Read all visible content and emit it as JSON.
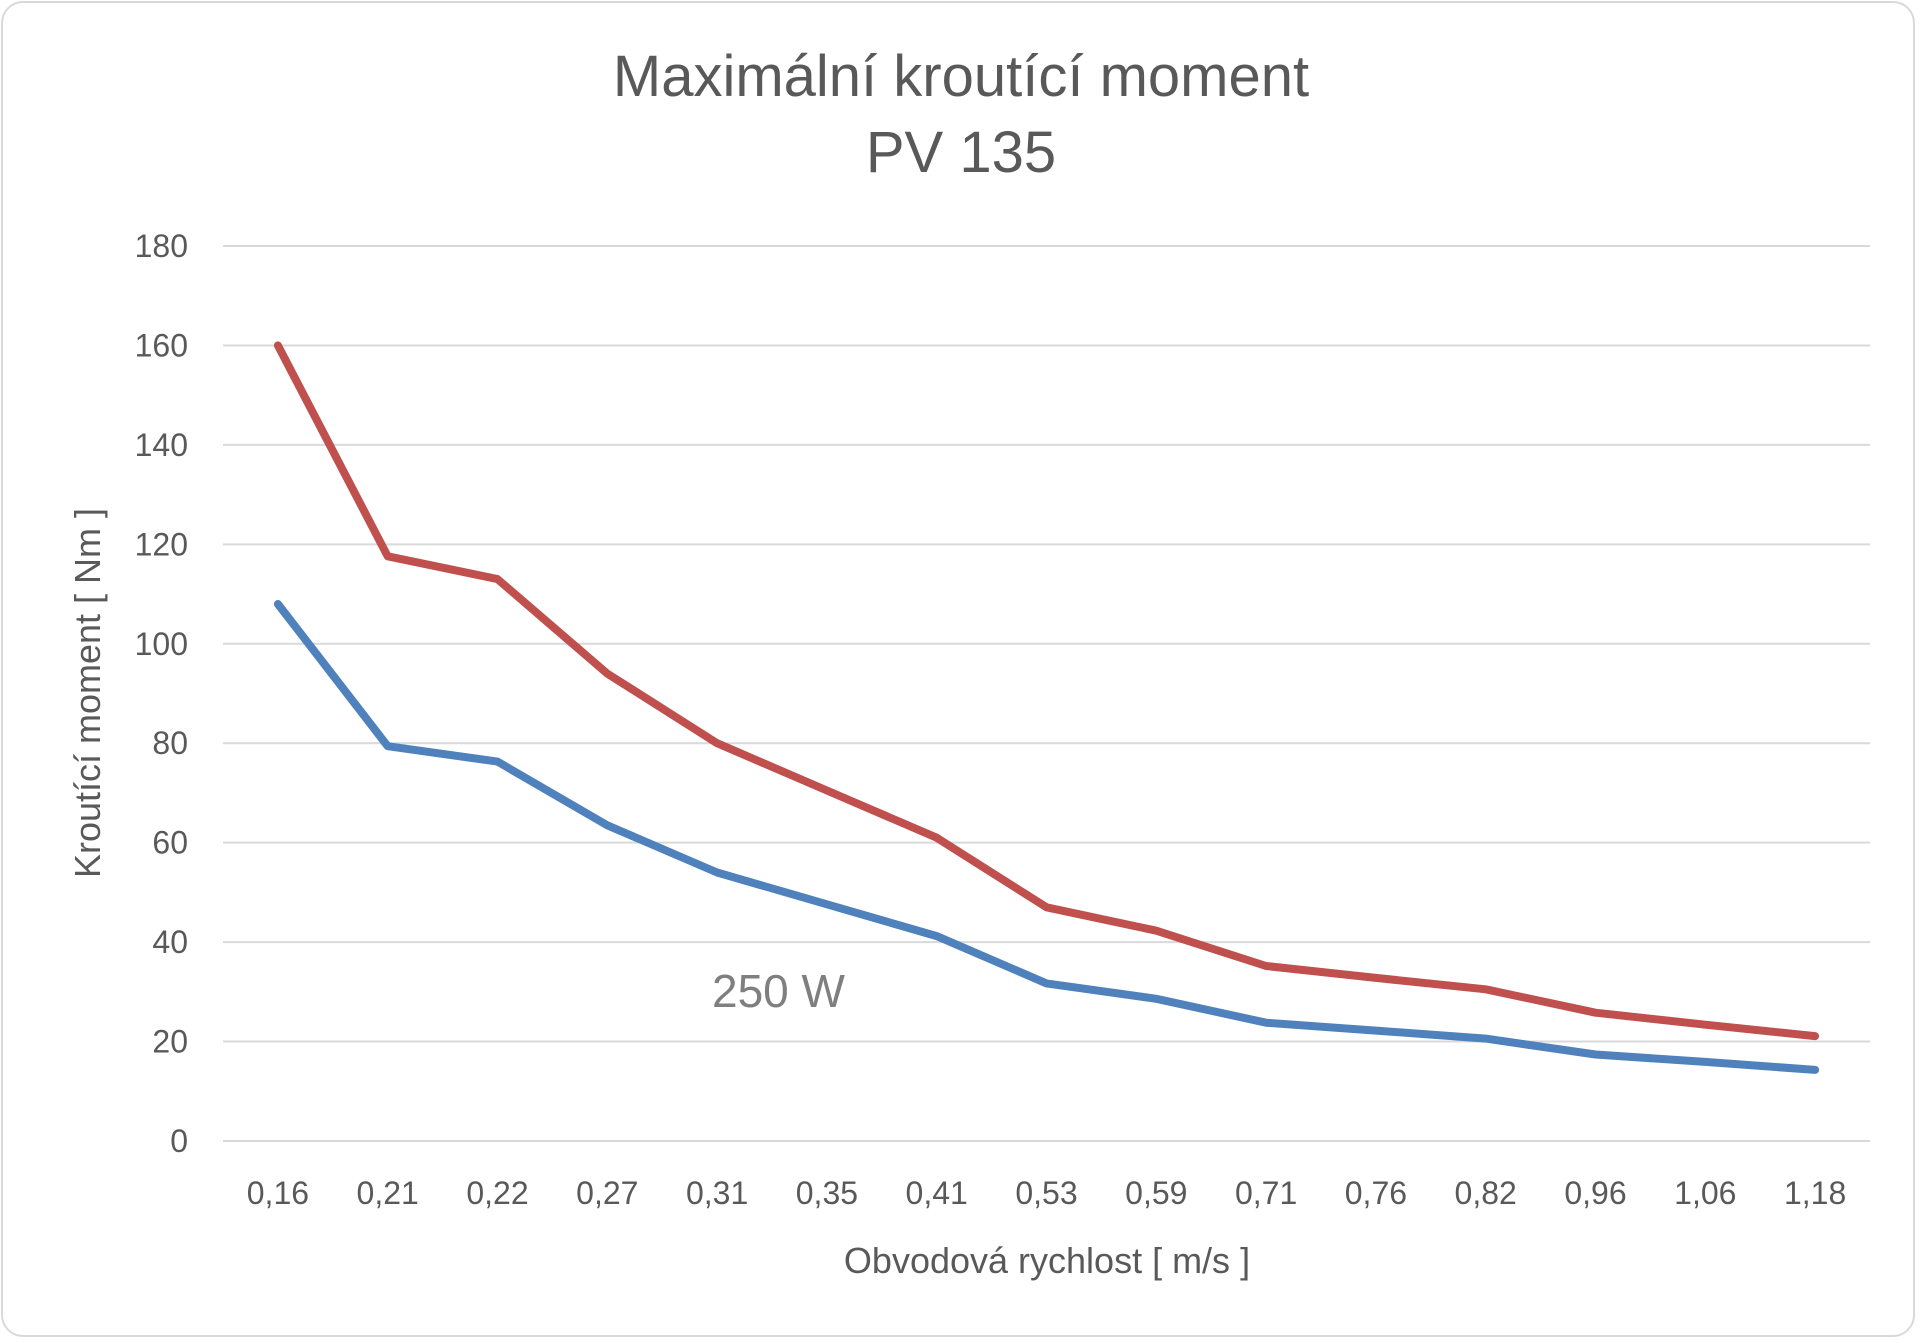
{
  "chart_data": {
    "type": "line",
    "title": "Maximální kroutící moment",
    "subtitle": "PV 135",
    "xlabel": "Obvodová rychlost  [ m/s ]",
    "ylabel": "Kroutící moment  [ Nm ]",
    "categories": [
      "0,16",
      "0,21",
      "0,22",
      "0,27",
      "0,31",
      "0,35",
      "0,41",
      "0,53",
      "0,59",
      "0,71",
      "0,76",
      "0,82",
      "0,96",
      "1,06",
      "1,18"
    ],
    "y_ticks": [
      "0",
      "20",
      "40",
      "60",
      "80",
      "100",
      "120",
      "140",
      "160",
      "180"
    ],
    "ylim": [
      0,
      180
    ],
    "grid": true,
    "annotation": "250 W",
    "series": [
      {
        "color": "#c0504d",
        "values": [
          160,
          117.6,
          113,
          94,
          80,
          70.5,
          61,
          47,
          42.3,
          35.2,
          32.8,
          30.5,
          25.8,
          23.4,
          21.1
        ]
      },
      {
        "color": "#4f81bd",
        "values": [
          108,
          79.4,
          76.3,
          63.5,
          54,
          47.6,
          41.2,
          31.7,
          28.6,
          23.8,
          22.2,
          20.6,
          17.4,
          15.9,
          14.3
        ]
      }
    ]
  }
}
